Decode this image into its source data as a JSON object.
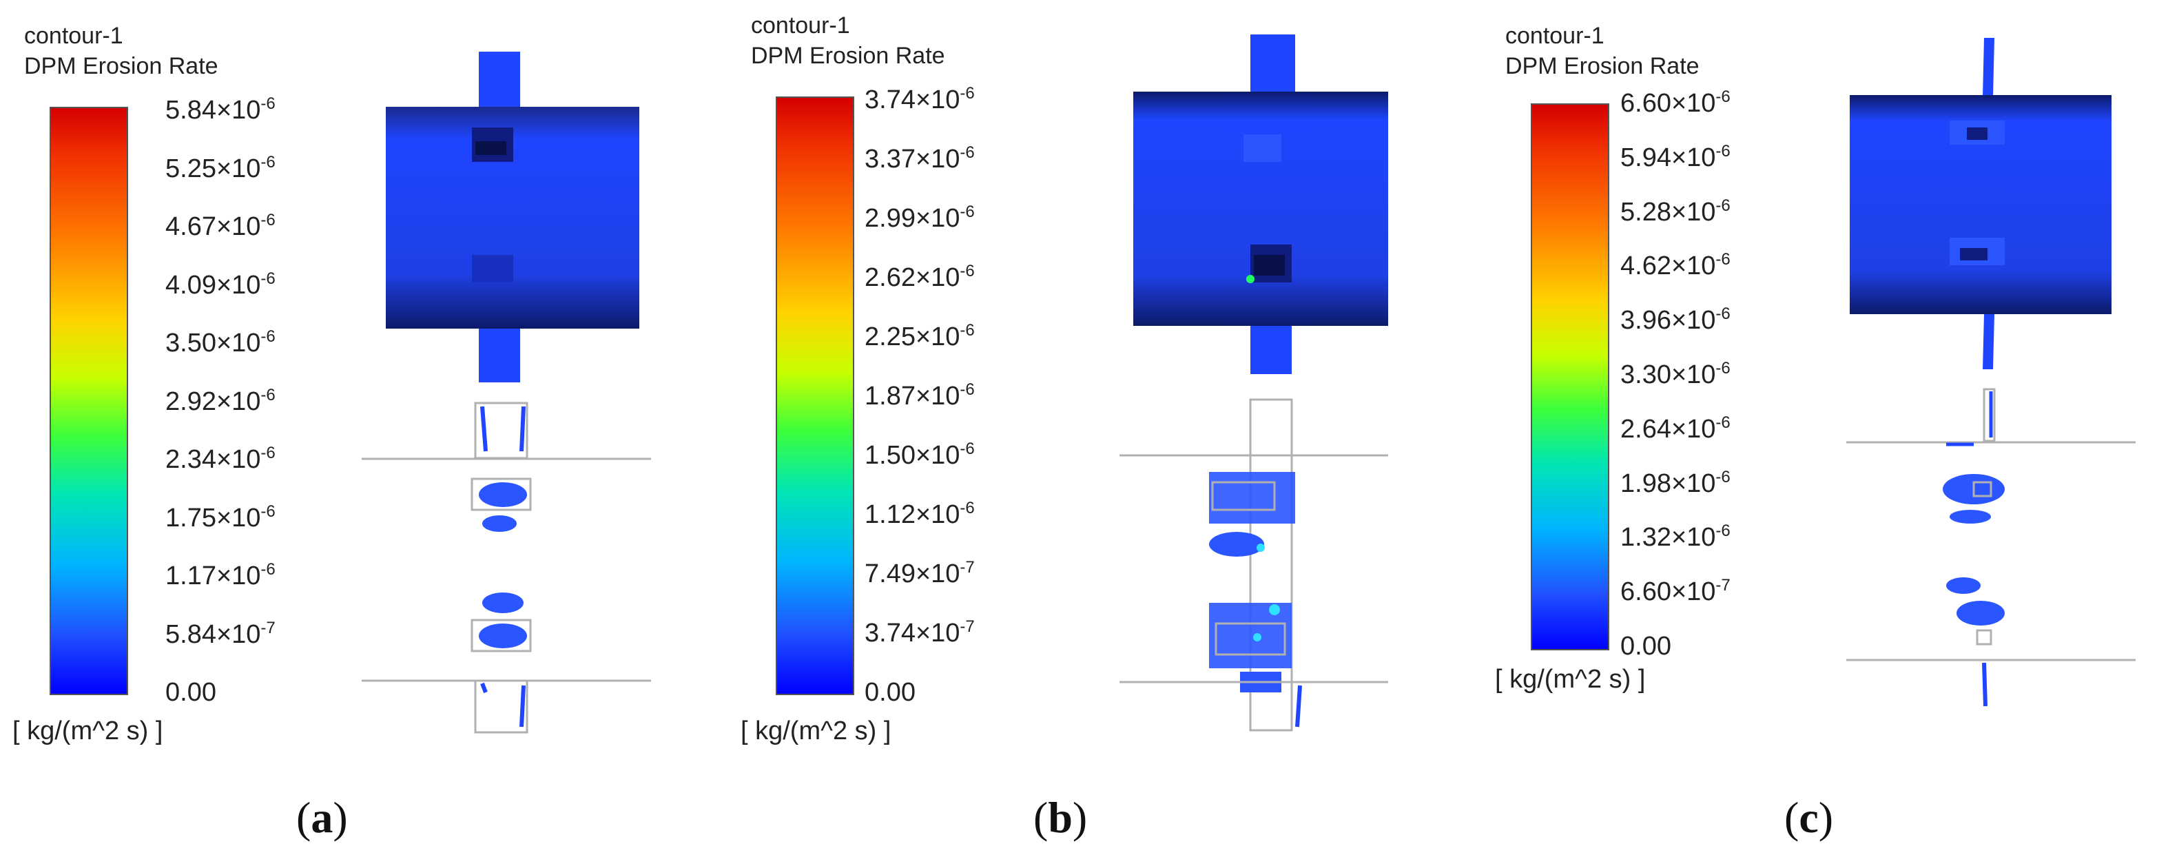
{
  "panels": [
    {
      "id": "a",
      "title_line1": "contour-1",
      "title_line2": "DPM Erosion Rate",
      "ticks": [
        {
          "m": "5.84",
          "e": "-6"
        },
        {
          "m": "5.25",
          "e": "-6"
        },
        {
          "m": "4.67",
          "e": "-6"
        },
        {
          "m": "4.09",
          "e": "-6"
        },
        {
          "m": "3.50",
          "e": "-6"
        },
        {
          "m": "2.92",
          "e": "-6"
        },
        {
          "m": "2.34",
          "e": "-6"
        },
        {
          "m": "1.75",
          "e": "-6"
        },
        {
          "m": "1.17",
          "e": "-6"
        },
        {
          "m": "5.84",
          "e": "-7"
        },
        {
          "m": "0.00",
          "e": ""
        }
      ],
      "unit": "[ kg/(m^2 s) ]",
      "caption": "a"
    },
    {
      "id": "b",
      "title_line1": "contour-1",
      "title_line2": "DPM Erosion Rate",
      "ticks": [
        {
          "m": "3.74",
          "e": "-6"
        },
        {
          "m": "3.37",
          "e": "-6"
        },
        {
          "m": "2.99",
          "e": "-6"
        },
        {
          "m": "2.62",
          "e": "-6"
        },
        {
          "m": "2.25",
          "e": "-6"
        },
        {
          "m": "1.87",
          "e": "-6"
        },
        {
          "m": "1.50",
          "e": "-6"
        },
        {
          "m": "1.12",
          "e": "-6"
        },
        {
          "m": "7.49",
          "e": "-7"
        },
        {
          "m": "3.74",
          "e": "-7"
        },
        {
          "m": "0.00",
          "e": ""
        }
      ],
      "unit": "[ kg/(m^2 s) ]",
      "caption": "b"
    },
    {
      "id": "c",
      "title_line1": "contour-1",
      "title_line2": "DPM Erosion Rate",
      "ticks": [
        {
          "m": "6.60",
          "e": "-6"
        },
        {
          "m": "5.94",
          "e": "-6"
        },
        {
          "m": "5.28",
          "e": "-6"
        },
        {
          "m": "4.62",
          "e": "-6"
        },
        {
          "m": "3.96",
          "e": "-6"
        },
        {
          "m": "3.30",
          "e": "-6"
        },
        {
          "m": "2.64",
          "e": "-6"
        },
        {
          "m": "1.98",
          "e": "-6"
        },
        {
          "m": "1.32",
          "e": "-6"
        },
        {
          "m": "6.60",
          "e": "-7"
        },
        {
          "m": "0.00",
          "e": ""
        }
      ],
      "unit": "[ kg/(m^2 s) ]",
      "caption": "c"
    }
  ],
  "colors": {
    "erosion_high": "#d40000",
    "erosion_low": "#0000ff",
    "surface_blue": "#1a3cf0",
    "outline_gray": "#b0b0b0"
  }
}
